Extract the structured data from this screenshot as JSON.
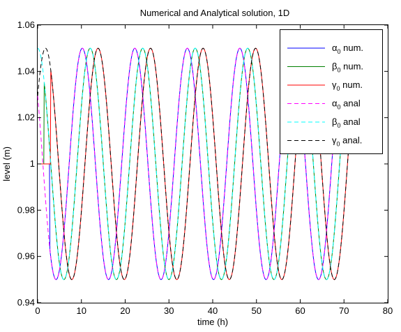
{
  "chart_data": {
    "type": "line",
    "title": "Numerical and Analytical solution, 1D",
    "xlabel": "time (h)",
    "ylabel": "level (m)",
    "xlim": [
      0,
      80
    ],
    "ylim": [
      0.94,
      1.06
    ],
    "xticks": [
      "0",
      "10",
      "20",
      "30",
      "40",
      "50",
      "60",
      "70",
      "80"
    ],
    "yticks": [
      "0.94",
      "0.96",
      "0.98",
      "1",
      "1.02",
      "1.04",
      "1.06"
    ],
    "grid": false,
    "legend_position": "top-right",
    "wave": {
      "mean": 1.0,
      "amplitude": 0.05,
      "period_h": 12.0,
      "t_end_h": 71
    },
    "series": [
      {
        "name": "α₀ num.",
        "base": "α",
        "suffix": " num.",
        "color": "#0000ff",
        "dash": "solid",
        "phase_peak_h": 10.2,
        "start_h": 0,
        "step_value": 1.0,
        "step_end_h": 2.8
      },
      {
        "name": "β₀ num.",
        "base": "β",
        "suffix": " num.",
        "color": "#008000",
        "dash": "solid",
        "phase_peak_h": 12.0,
        "start_h": 0,
        "step_value": 1.0,
        "step_end_h": 1.5
      },
      {
        "name": "γ₀ num.",
        "base": "γ",
        "suffix": " num.",
        "color": "#ff0000",
        "dash": "solid",
        "phase_peak_h": 13.8,
        "start_h": 0,
        "step_value": 1.0,
        "step_end_h": 3.0
      },
      {
        "name": "α₀ anal",
        "base": "α",
        "suffix": " anal",
        "color": "#ff00ff",
        "dash": "dashed",
        "phase_peak_h": 10.2,
        "start_h": 0
      },
      {
        "name": "β₀ anal",
        "base": "β",
        "suffix": " anal",
        "color": "#00ffff",
        "dash": "dashed",
        "phase_peak_h": 12.0,
        "start_h": 0
      },
      {
        "name": "γ₀ anal.",
        "base": "γ",
        "suffix": " anal.",
        "color": "#000000",
        "dash": "dashed",
        "phase_peak_h": 13.8,
        "start_h": 0
      }
    ]
  }
}
